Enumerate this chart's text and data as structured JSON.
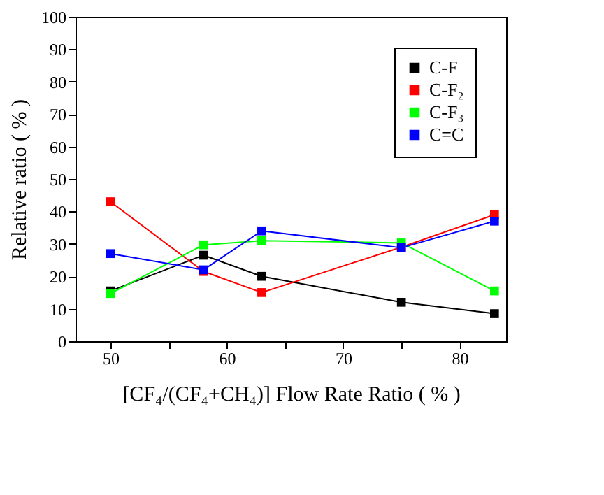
{
  "chart_data": {
    "type": "line",
    "xlabel": "[CF₄/(CF₄+CH₄)] Flow Rate Ratio ( % )",
    "ylabel": "Relative ratio ( % )",
    "x": [
      50,
      58,
      63,
      75,
      83
    ],
    "xlim": [
      47,
      84
    ],
    "xticks": [
      50,
      {
        "value": 55,
        "label": null
      },
      60,
      {
        "value": 65,
        "label": null
      },
      70,
      {
        "value": 75,
        "label": null
      },
      80
    ],
    "ylim": [
      0,
      100
    ],
    "yticks": [
      0,
      10,
      20,
      30,
      40,
      50,
      60,
      70,
      80,
      90,
      100
    ],
    "grid": false,
    "legend": "top right",
    "marker": "square",
    "line_style": "solid",
    "series": [
      {
        "name": "C-F",
        "color": "#000000",
        "values": [
          15.5,
          26.5,
          20,
          12,
          8.5
        ]
      },
      {
        "name": "C-F₂",
        "color": "#ff0000",
        "values": [
          43,
          21.5,
          15,
          29,
          39
        ]
      },
      {
        "name": "C-F₃",
        "color": "#00ff00",
        "values": [
          14.7,
          29.7,
          31,
          30.3,
          15.5
        ]
      },
      {
        "name": "C=C",
        "color": "#0000ff",
        "values": [
          27,
          22,
          34,
          28.8,
          37
        ]
      }
    ]
  }
}
